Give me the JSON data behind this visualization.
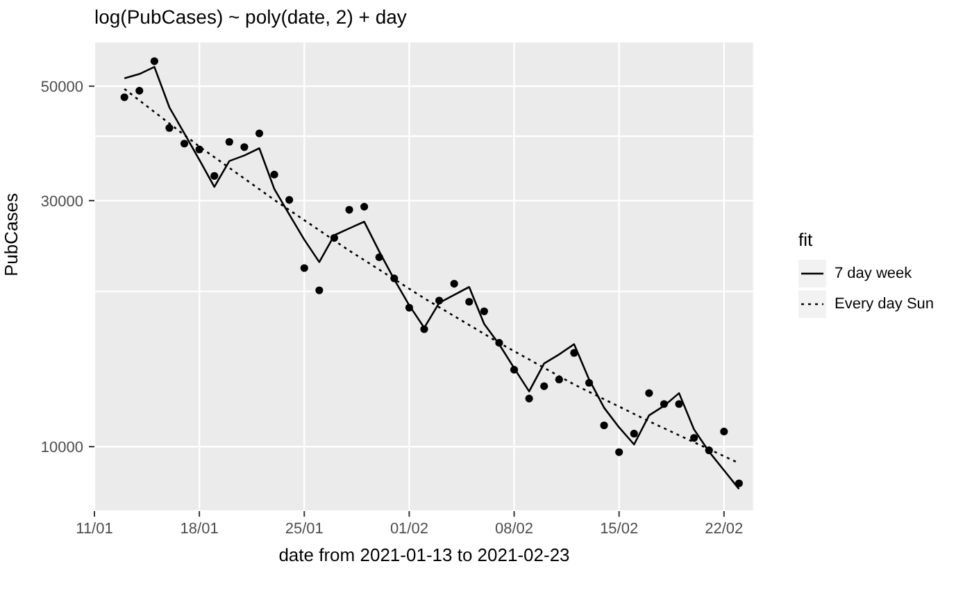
{
  "chart_data": {
    "type": "scatter",
    "title": "log(PubCases) ~ poly(date, 2) + day",
    "xlabel": "date from 2021-01-13 to 2021-02-23",
    "ylabel": "PubCases",
    "legend_title": "fit",
    "x": [
      "2021-01-13",
      "2021-01-14",
      "2021-01-15",
      "2021-01-16",
      "2021-01-17",
      "2021-01-18",
      "2021-01-19",
      "2021-01-20",
      "2021-01-21",
      "2021-01-22",
      "2021-01-23",
      "2021-01-24",
      "2021-01-25",
      "2021-01-26",
      "2021-01-27",
      "2021-01-28",
      "2021-01-29",
      "2021-01-30",
      "2021-01-31",
      "2021-02-01",
      "2021-02-02",
      "2021-02-03",
      "2021-02-04",
      "2021-02-05",
      "2021-02-06",
      "2021-02-07",
      "2021-02-08",
      "2021-02-09",
      "2021-02-10",
      "2021-02-11",
      "2021-02-12",
      "2021-02-13",
      "2021-02-14",
      "2021-02-15",
      "2021-02-16",
      "2021-02-17",
      "2021-02-18",
      "2021-02-19",
      "2021-02-20",
      "2021-02-21",
      "2021-02-22",
      "2021-02-23"
    ],
    "series": [
      {
        "color": "#000000",
        "marker": "circle",
        "values": [
          47600,
          49000,
          55900,
          41500,
          38700,
          37700,
          33500,
          39000,
          38100,
          40500,
          33700,
          30100,
          22200,
          20100,
          25400,
          28800,
          29200,
          23300,
          21200,
          18600,
          16900,
          19200,
          20700,
          19100,
          18300,
          15900,
          14100,
          12400,
          13100,
          13500,
          15200,
          13300,
          11000,
          9760,
          10600,
          12700,
          12100,
          12100,
          10400,
          9840,
          10700,
          8490
        ]
      },
      {
        "type": "line",
        "name": "7 day week",
        "color": "#000000",
        "line_style": "solid",
        "values": [
          51800,
          52800,
          54500,
          45500,
          40500,
          36000,
          31900,
          35800,
          36700,
          37900,
          31600,
          28200,
          25200,
          22800,
          25700,
          26500,
          27300,
          23900,
          21100,
          18800,
          17000,
          19000,
          19700,
          20400,
          17300,
          15800,
          14200,
          12800,
          14500,
          15100,
          15800,
          13500,
          11900,
          10900,
          10100,
          11500,
          12000,
          12700,
          10800,
          9780,
          9000,
          8280
        ]
      },
      {
        "type": "line",
        "name": "Every day Sun",
        "color": "#000000",
        "line_style": "dotted",
        "x": [
          "2021-01-13",
          "2021-01-18",
          "2021-01-23",
          "2021-01-28",
          "2021-02-02",
          "2021-02-07",
          "2021-02-12",
          "2021-02-17",
          "2021-02-23"
        ],
        "values": [
          49400,
          38200,
          30100,
          24000,
          19400,
          15900,
          13200,
          11200,
          9290
        ]
      }
    ],
    "log": "y",
    "ylim": [
      7500,
      61000
    ],
    "yticks": [
      10000,
      {
        "value": 20000,
        "label": null
      },
      30000,
      {
        "value": 40000,
        "label": null
      },
      50000
    ],
    "xlim": [
      "2021-01-11",
      "2021-02-24"
    ],
    "xticks": [
      {
        "value": "2021-01-11",
        "label": "11/01"
      },
      {
        "value": "2021-01-18",
        "label": "18/01"
      },
      {
        "value": "2021-01-25",
        "label": "25/01"
      },
      {
        "value": "2021-02-01",
        "label": "01/02"
      },
      {
        "value": "2021-02-08",
        "label": "08/02"
      },
      {
        "value": "2021-02-15",
        "label": "15/02"
      },
      {
        "value": "2021-02-22",
        "label": "22/02"
      }
    ],
    "grid": true,
    "legend": "right"
  }
}
